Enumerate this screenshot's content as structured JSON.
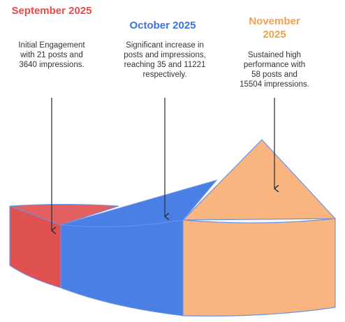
{
  "stages": [
    {
      "title": "September 2025",
      "description": "Initial Engagement with 21 posts and 3640 impressions."
    },
    {
      "title": "October 2025",
      "description": "Significant increase in posts and impressions, reaching 35 and 11221 respectively."
    },
    {
      "title": "November 2025",
      "description": "Sustained high performance with 58 posts and 15504 impressions."
    }
  ]
}
